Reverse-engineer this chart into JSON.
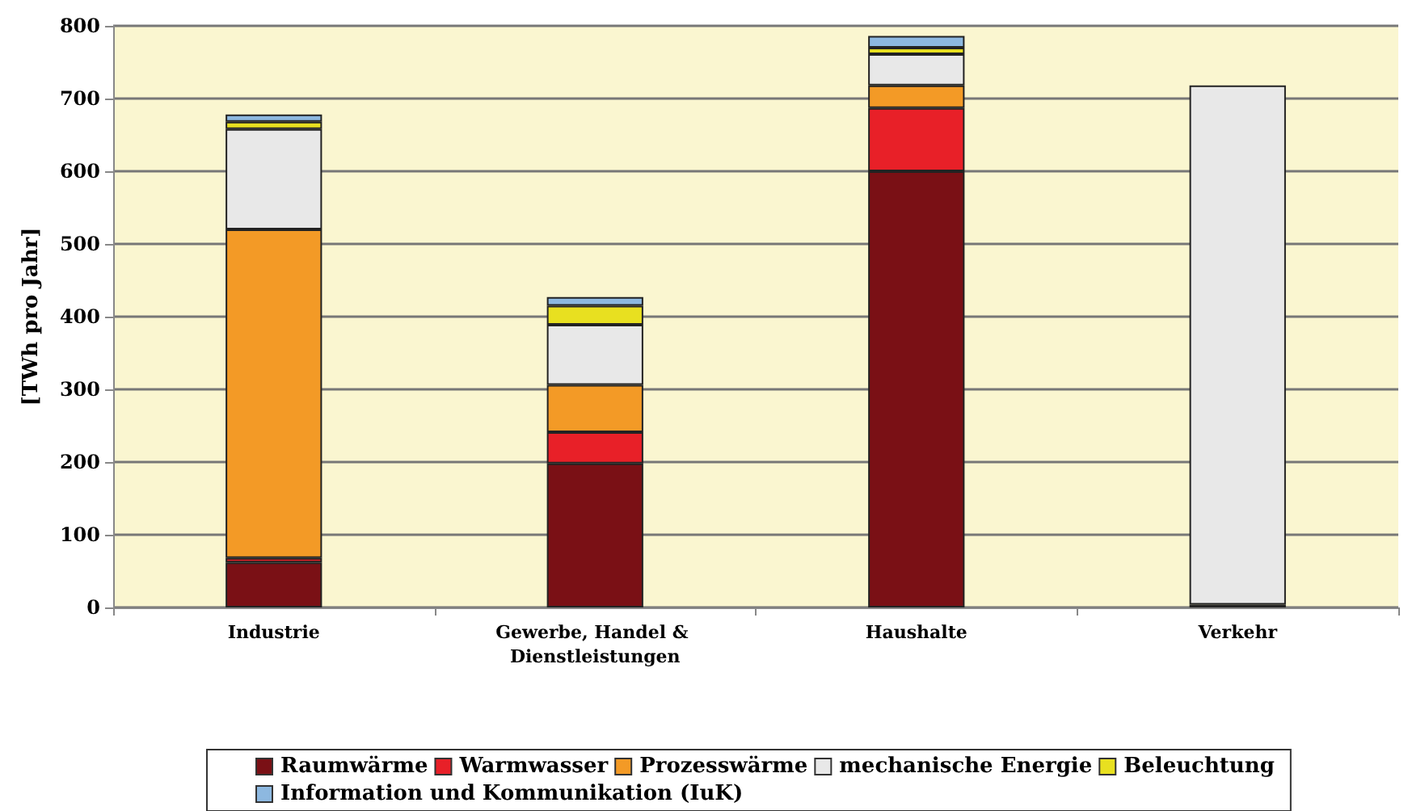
{
  "chart_data": {
    "type": "bar",
    "stacked": true,
    "ylabel": "[TWh pro Jahr]",
    "categories": [
      "Industrie",
      "Gewerbe, Handel & Dienstleistungen",
      "Haushalte",
      "Verkehr"
    ],
    "series": [
      {
        "name": "Raumwärme",
        "color": "#7a1015",
        "values": [
          62,
          198,
          600,
          4
        ]
      },
      {
        "name": "Warmwasser",
        "color": "#e82028",
        "values": [
          6,
          43,
          87,
          null
        ]
      },
      {
        "name": "Prozesswärme",
        "color": "#f39a26",
        "values": [
          452,
          65,
          31,
          null
        ]
      },
      {
        "name": "mechanische Energie",
        "color": "#e8e8e8",
        "values": [
          138,
          83,
          43,
          714
        ]
      },
      {
        "name": "Beleuchtung",
        "color": "#e8e020",
        "values": [
          10,
          26,
          9,
          null
        ]
      },
      {
        "name": "Information und Kommunikation (IuK)",
        "color": "#8db8e0",
        "values": [
          10,
          12,
          16,
          null
        ]
      }
    ],
    "ylim": [
      0,
      800
    ],
    "yticks": [
      0,
      100,
      200,
      300,
      400,
      500,
      600,
      700,
      800
    ],
    "grid": "y",
    "legend": "bottom"
  }
}
